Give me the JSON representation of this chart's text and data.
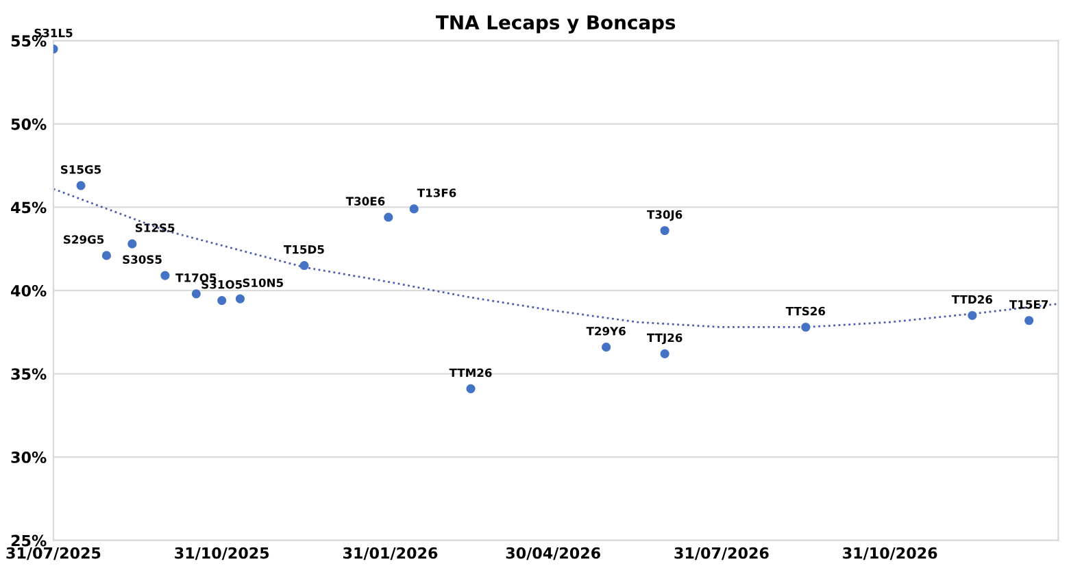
{
  "chart_data": {
    "type": "scatter",
    "title": "TNA Lecaps y Boncaps",
    "xlim": [
      "2025-07-31",
      "2027-01-31"
    ],
    "xticks": [
      {
        "value": "2025-07-31",
        "label": "31/07/2025"
      },
      {
        "value": "2025-10-31",
        "label": "31/10/2025"
      },
      {
        "value": "2026-01-31",
        "label": "31/01/2026"
      },
      {
        "value": "2026-04-30",
        "label": "30/04/2026"
      },
      {
        "value": "2026-07-31",
        "label": "31/07/2026"
      },
      {
        "value": "2026-10-31",
        "label": "31/10/2026"
      }
    ],
    "ylim": [
      25,
      55
    ],
    "yticks": [
      {
        "value": 25,
        "label": "25%"
      },
      {
        "value": 30,
        "label": "30%"
      },
      {
        "value": 35,
        "label": "35%"
      },
      {
        "value": 40,
        "label": "40%"
      },
      {
        "value": 45,
        "label": "45%"
      },
      {
        "value": 50,
        "label": "50%"
      },
      {
        "value": 55,
        "label": "55%"
      }
    ],
    "grid": "y",
    "marker": "circle",
    "series": [
      {
        "color": "#4472c4",
        "x": [
          "2025-07-31",
          "2025-08-15",
          "2025-08-29",
          "2025-09-12",
          "2025-09-30",
          "2025-10-17",
          "2025-10-31",
          "2025-11-10",
          "2025-12-15",
          "2026-01-30",
          "2026-02-13",
          "2026-03-16",
          "2026-05-29",
          "2026-06-30",
          "2026-06-30",
          "2026-09-15",
          "2026-12-15",
          "2027-01-15"
        ],
        "values": [
          54.5,
          46.3,
          42.1,
          42.8,
          40.9,
          39.8,
          39.4,
          39.5,
          41.5,
          44.4,
          44.9,
          34.1,
          36.6,
          43.6,
          36.2,
          37.8,
          38.5,
          38.2
        ]
      },
      {
        "type": "line",
        "color": "#4a5bb0",
        "line_style": "dotted",
        "marker": "none",
        "x": [
          "2025-07-31",
          "2025-09-30",
          "2025-12-15",
          "2026-01-31",
          "2026-03-15",
          "2026-04-30",
          "2026-06-15",
          "2026-07-31",
          "2026-09-15",
          "2026-10-31",
          "2026-12-15",
          "2027-01-31"
        ],
        "values": [
          46.1,
          43.6,
          41.4,
          40.5,
          39.6,
          38.8,
          38.1,
          37.8,
          37.8,
          38.1,
          38.6,
          39.2
        ]
      }
    ],
    "annotations": [
      {
        "text": "S31L5",
        "x": "2025-07-31",
        "y": 54.5
      },
      {
        "text": "S15G5",
        "x": "2025-08-15",
        "y": 46.3
      },
      {
        "text": "S29G5",
        "x": "2025-08-29",
        "y": 42.1
      },
      {
        "text": "S12S5",
        "x": "2025-09-12",
        "y": 42.8
      },
      {
        "text": "S30S5",
        "x": "2025-09-30",
        "y": 40.9
      },
      {
        "text": "T17O5",
        "x": "2025-10-17",
        "y": 39.8
      },
      {
        "text": "S31O5",
        "x": "2025-10-31",
        "y": 39.4
      },
      {
        "text": "S10N5",
        "x": "2025-11-10",
        "y": 39.5
      },
      {
        "text": "T15D5",
        "x": "2025-12-15",
        "y": 41.5
      },
      {
        "text": "T30E6",
        "x": "2026-01-30",
        "y": 44.4
      },
      {
        "text": "T13F6",
        "x": "2026-02-13",
        "y": 44.9
      },
      {
        "text": "TTM26",
        "x": "2026-03-16",
        "y": 34.1
      },
      {
        "text": "T29Y6",
        "x": "2026-05-29",
        "y": 36.6
      },
      {
        "text": "T30J6",
        "x": "2026-06-30",
        "y": 43.6
      },
      {
        "text": "TTJ26",
        "x": "2026-06-30",
        "y": 36.2
      },
      {
        "text": "TTS26",
        "x": "2026-09-15",
        "y": 37.8
      },
      {
        "text": "TTD26",
        "x": "2026-12-15",
        "y": 38.5
      },
      {
        "text": "T15E7",
        "x": "2027-01-15",
        "y": 38.2
      }
    ]
  }
}
